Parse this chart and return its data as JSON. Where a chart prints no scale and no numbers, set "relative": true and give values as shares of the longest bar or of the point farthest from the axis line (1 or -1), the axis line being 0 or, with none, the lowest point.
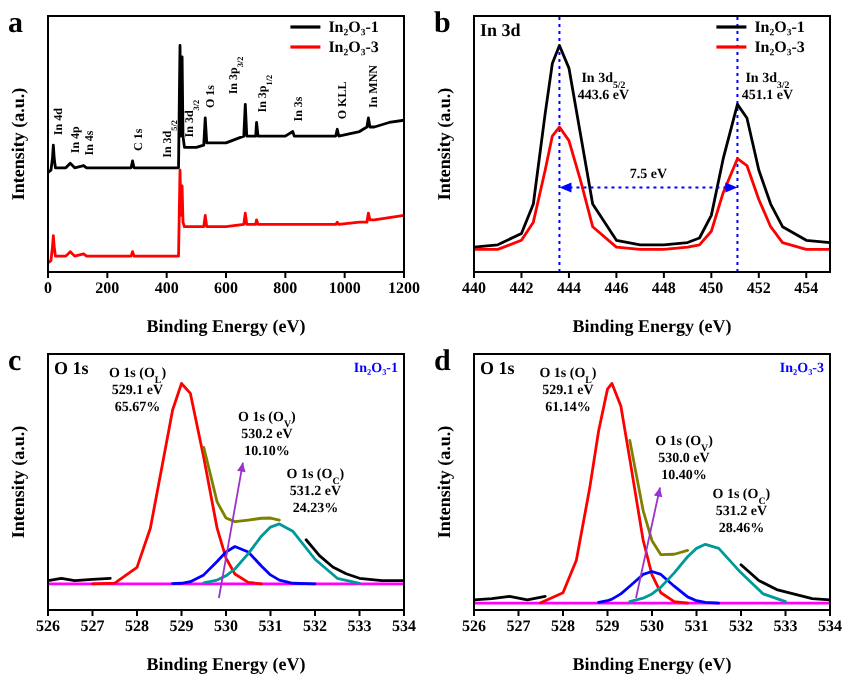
{
  "chart_data": [
    {
      "type": "line",
      "relative": true,
      "xlabel": "Binding Energy (eV)",
      "ylabel": "Intensity (a.u.)",
      "legend": "top right",
      "xlim": [
        0,
        1200
      ],
      "xticks": [
        0,
        200,
        400,
        600,
        800,
        1000,
        1200
      ],
      "x": [
        0,
        10,
        15,
        18,
        21,
        25,
        60,
        75,
        90,
        120,
        130,
        280,
        285,
        290,
        300,
        440,
        443,
        445,
        448,
        452,
        455,
        460,
        500,
        525,
        530,
        535,
        600,
        660,
        665,
        670,
        700,
        703,
        708,
        800,
        825,
        830,
        900,
        970,
        975,
        980,
        1050,
        1075,
        1080,
        1085,
        1100,
        1150,
        1200
      ],
      "series": [
        {
          "name": "In₂O₃-1",
          "color": "#000000",
          "values": [
            0.44,
            0.45,
            0.5,
            0.56,
            0.5,
            0.46,
            0.46,
            0.48,
            0.46,
            0.47,
            0.46,
            0.46,
            0.49,
            0.46,
            0.46,
            0.46,
            0.8,
            1.0,
            0.6,
            0.95,
            0.6,
            0.55,
            0.55,
            0.56,
            0.68,
            0.57,
            0.57,
            0.6,
            0.74,
            0.6,
            0.6,
            0.66,
            0.6,
            0.6,
            0.62,
            0.6,
            0.6,
            0.6,
            0.63,
            0.6,
            0.62,
            0.64,
            0.68,
            0.64,
            0.64,
            0.66,
            0.67
          ]
        },
        {
          "name": "In₂O₃-3",
          "color": "#ff0000",
          "values": [
            0.04,
            0.05,
            0.11,
            0.16,
            0.11,
            0.07,
            0.07,
            0.09,
            0.07,
            0.08,
            0.07,
            0.07,
            0.09,
            0.07,
            0.07,
            0.07,
            0.3,
            0.45,
            0.25,
            0.38,
            0.22,
            0.2,
            0.2,
            0.2,
            0.25,
            0.2,
            0.2,
            0.21,
            0.26,
            0.21,
            0.21,
            0.23,
            0.21,
            0.21,
            0.21,
            0.21,
            0.21,
            0.21,
            0.22,
            0.21,
            0.22,
            0.22,
            0.26,
            0.23,
            0.23,
            0.24,
            0.25
          ]
        }
      ],
      "annotations": [
        "a",
        {
          "text": "In 4d",
          "x": 18,
          "y": 0.56
        },
        {
          "text": "In 4p",
          "x": 75,
          "y": 0.48
        },
        {
          "text": "In 4s",
          "x": 120,
          "y": 0.47
        },
        {
          "text": "C 1s",
          "x": 285,
          "y": 0.49
        },
        {
          "text": "In 3d$_{5/2}$",
          "x": 440,
          "y": 0.46
        },
        {
          "text": "In 3d$_{3/2}$",
          "x": 460,
          "y": 0.55
        },
        {
          "text": "O 1s",
          "x": 530,
          "y": 0.68
        },
        {
          "text": "In 3p$_{3/2}$",
          "x": 665,
          "y": 0.74
        },
        {
          "text": "In 3p$_{1/2}$",
          "x": 703,
          "y": 0.66
        },
        {
          "text": "In 3s",
          "x": 825,
          "y": 0.62
        },
        {
          "text": "O KLL",
          "x": 975,
          "y": 0.63
        },
        {
          "text": "In MNN",
          "x": 1080,
          "y": 0.68
        }
      ]
    },
    {
      "type": "line",
      "relative": true,
      "xlabel": "Binding Energy (eV)",
      "ylabel": "Intensity (a.u.)",
      "legend": "top right",
      "xlim": [
        440,
        455
      ],
      "xticks": [
        440,
        442,
        444,
        446,
        448,
        450,
        452,
        454
      ],
      "x": [
        440,
        441,
        442,
        442.5,
        443,
        443.3,
        443.6,
        444,
        444.5,
        445,
        446,
        447,
        448,
        449,
        449.5,
        450,
        450.5,
        451.1,
        451.5,
        452,
        452.5,
        453,
        454,
        455
      ],
      "series": [
        {
          "name": "In₂O₃-1",
          "color": "#000000",
          "values": [
            0.11,
            0.12,
            0.17,
            0.3,
            0.7,
            0.92,
            1.0,
            0.9,
            0.6,
            0.3,
            0.14,
            0.12,
            0.12,
            0.13,
            0.15,
            0.25,
            0.5,
            0.74,
            0.68,
            0.45,
            0.3,
            0.2,
            0.14,
            0.13
          ]
        },
        {
          "name": "In₂O₃-3",
          "color": "#ff0000",
          "values": [
            0.1,
            0.1,
            0.14,
            0.22,
            0.45,
            0.6,
            0.64,
            0.58,
            0.4,
            0.2,
            0.11,
            0.1,
            0.1,
            0.11,
            0.12,
            0.18,
            0.35,
            0.5,
            0.47,
            0.32,
            0.2,
            0.13,
            0.1,
            0.1
          ]
        }
      ],
      "ref_lines": [
        {
          "axis": "x",
          "value": 443.6,
          "color": "#0000ff",
          "line_style": "dotted"
        },
        {
          "axis": "x",
          "value": 451.1,
          "color": "#0000ff",
          "line_style": "dotted"
        }
      ],
      "annotations": [
        "b",
        "In 3d",
        "In 3d$_{5/2}$\n443.6 eV",
        "In 3d$_{3/2}$\n451.1 eV",
        "7.5 eV"
      ]
    },
    {
      "type": "line",
      "relative": true,
      "xlabel": "Binding Energy (eV)",
      "ylabel": "Intensity (a.u.)",
      "xlim": [
        526,
        534
      ],
      "xticks": [
        526,
        527,
        528,
        529,
        530,
        531,
        532,
        533,
        534
      ],
      "series": [
        {
          "color": "#ff00ff",
          "x": [
            526,
            534
          ],
          "values": [
            0.115,
            0.115
          ]
        },
        {
          "color": "#000000",
          "x": [
            526,
            526.3,
            526.6,
            527,
            527.4,
            527.7,
            531.8,
            532.1,
            532.4,
            532.7,
            533,
            533.5,
            534
          ],
          "values": [
            0.13,
            0.14,
            0.13,
            0.135,
            0.14,
            null,
            0.31,
            0.24,
            0.19,
            0.16,
            0.14,
            0.13,
            0.13
          ]
        },
        {
          "color": "#ff0000",
          "x": [
            527,
            527.5,
            528,
            528.3,
            528.6,
            528.8,
            529,
            529.2,
            529.5,
            529.8,
            530,
            530.2,
            530.5,
            530.8
          ],
          "values": [
            0.115,
            0.119,
            0.188,
            0.361,
            0.673,
            0.883,
            1.0,
            0.956,
            0.673,
            0.361,
            0.229,
            0.159,
            0.122,
            0.115
          ]
        },
        {
          "color": "#0000ff",
          "x": [
            528.8,
            529,
            529.2,
            529.5,
            529.8,
            530,
            530.2,
            530.5,
            530.8,
            531,
            531.2,
            531.5,
            532
          ],
          "values": [
            0.116,
            0.118,
            0.125,
            0.155,
            0.214,
            0.256,
            0.28,
            0.256,
            0.193,
            0.155,
            0.132,
            0.118,
            0.115
          ]
        },
        {
          "color": "#009999",
          "x": [
            529.5,
            529.8,
            530,
            530.2,
            530.5,
            530.8,
            531,
            531.2,
            531.5,
            532,
            532.5,
            533
          ],
          "values": [
            0.12,
            0.132,
            0.151,
            0.181,
            0.249,
            0.327,
            0.366,
            0.38,
            0.348,
            0.224,
            0.14,
            0.118
          ]
        },
        {
          "color": "#808000",
          "x": [
            529.5,
            529.8,
            530,
            530.2,
            530.5,
            530.8,
            531,
            531.2
          ],
          "values": [
            0.718,
            0.477,
            0.406,
            0.39,
            0.397,
            0.405,
            0.406,
            0.397
          ]
        }
      ],
      "annotations": [
        "c",
        "O 1s",
        "In₂O₃-1",
        "O 1s (O$_{L}$)\n529.1 eV\n65.67%",
        "O 1s (O$_{V}$)\n530.2 eV\n10.10%",
        "O 1s (O$_{C}$)\n531.2 eV\n24.23%"
      ]
    },
    {
      "type": "line",
      "relative": true,
      "xlabel": "Binding Energy (eV)",
      "ylabel": "Intensity (a.u.)",
      "xlim": [
        526,
        534
      ],
      "xticks": [
        526,
        527,
        528,
        529,
        530,
        531,
        532,
        533,
        534
      ],
      "series": [
        {
          "color": "#ff00ff",
          "x": [
            526,
            534
          ],
          "values": [
            0.03,
            0.03
          ]
        },
        {
          "color": "#000000",
          "x": [
            526,
            526.4,
            526.8,
            527.2,
            527.6,
            527.9,
            532,
            532.4,
            532.8,
            533.2,
            533.6,
            534
          ],
          "values": [
            0.045,
            0.05,
            0.06,
            0.045,
            0.06,
            null,
            0.2,
            0.13,
            0.09,
            0.07,
            0.05,
            0.045
          ]
        },
        {
          "color": "#ff0000",
          "x": [
            527.5,
            528,
            528.3,
            528.6,
            528.8,
            529,
            529.1,
            529.3,
            529.5,
            529.8,
            530,
            530.2,
            530.5,
            530.8
          ],
          "values": [
            0.032,
            0.076,
            0.22,
            0.538,
            0.79,
            0.975,
            1.0,
            0.9,
            0.667,
            0.309,
            0.155,
            0.076,
            0.037,
            0.03
          ]
        },
        {
          "color": "#0000ff",
          "x": [
            528.8,
            529,
            529.1,
            529.3,
            529.5,
            529.8,
            530,
            530.2,
            530.5,
            530.8,
            531,
            531.2,
            531.5
          ],
          "values": [
            0.034,
            0.041,
            0.048,
            0.071,
            0.105,
            0.157,
            0.17,
            0.157,
            0.105,
            0.058,
            0.041,
            0.034,
            0.03
          ]
        },
        {
          "color": "#009999",
          "x": [
            529.5,
            529.8,
            530,
            530.2,
            530.5,
            530.8,
            531,
            531.2,
            531.5,
            532,
            532.5,
            533
          ],
          "values": [
            0.037,
            0.052,
            0.071,
            0.101,
            0.164,
            0.235,
            0.272,
            0.29,
            0.272,
            0.164,
            0.071,
            0.037
          ]
        },
        {
          "color": "#808000",
          "x": [
            529.5,
            529.8,
            530,
            530.2,
            530.5,
            530.8
          ],
          "values": [
            0.749,
            0.44,
            0.306,
            0.244,
            0.246,
            0.263
          ]
        }
      ],
      "annotations": [
        "d",
        "O 1s",
        "In₂O₃-3",
        "O 1s (O$_{L}$)\n529.1 eV\n61.14%",
        "O 1s (O$_{V}$)\n530.0 eV\n10.40%",
        "O 1s (O$_{C}$)\n531.2 eV\n28.46%"
      ]
    }
  ]
}
